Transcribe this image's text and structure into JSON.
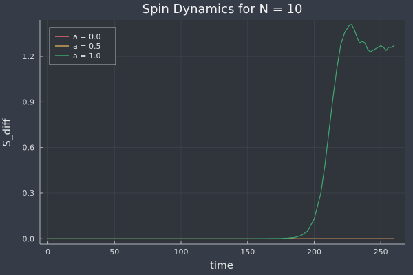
{
  "chart_data": {
    "type": "line",
    "title": "Spin Dynamics for N = 10",
    "xlabel": "time",
    "ylabel": "S_diff",
    "xlim": [
      -6,
      268
    ],
    "ylim": [
      -0.035,
      1.44
    ],
    "xticks": [
      0,
      50,
      100,
      150,
      200,
      250
    ],
    "xtick_labels": [
      "0",
      "50",
      "100",
      "150",
      "200",
      "250"
    ],
    "yticks": [
      0.0,
      0.3,
      0.6,
      0.9,
      1.2
    ],
    "ytick_labels": [
      "0.0",
      "0.3",
      "0.6",
      "0.9",
      "1.2"
    ],
    "grid": true,
    "legend_position": "top-left",
    "colors": {
      "figure_background": "#353b47",
      "plot_background": "#30343b",
      "axis": "#b5b8be",
      "grid": "#3e434c"
    },
    "series": [
      {
        "name": "a = 0.0",
        "color": "#e26f6f",
        "x": [
          0,
          260
        ],
        "y": [
          0,
          0
        ]
      },
      {
        "name": "a = 0.5",
        "color": "#c9a25a",
        "x": [
          0,
          260
        ],
        "y": [
          0,
          0
        ]
      },
      {
        "name": "a = 1.0",
        "color": "#3fa96f",
        "x": [
          0,
          150,
          175,
          180,
          185,
          190,
          195,
          200,
          205,
          208,
          211,
          214,
          217,
          220,
          223,
          226,
          228,
          230,
          232,
          234,
          236,
          238,
          240,
          242,
          244,
          246,
          248,
          250,
          252,
          254,
          256,
          258,
          260
        ],
        "y": [
          0,
          0,
          0.002,
          0.004,
          0.008,
          0.02,
          0.05,
          0.13,
          0.3,
          0.48,
          0.7,
          0.92,
          1.12,
          1.28,
          1.36,
          1.4,
          1.41,
          1.38,
          1.33,
          1.29,
          1.3,
          1.29,
          1.25,
          1.23,
          1.24,
          1.25,
          1.26,
          1.27,
          1.26,
          1.24,
          1.26,
          1.26,
          1.27
        ]
      }
    ]
  }
}
